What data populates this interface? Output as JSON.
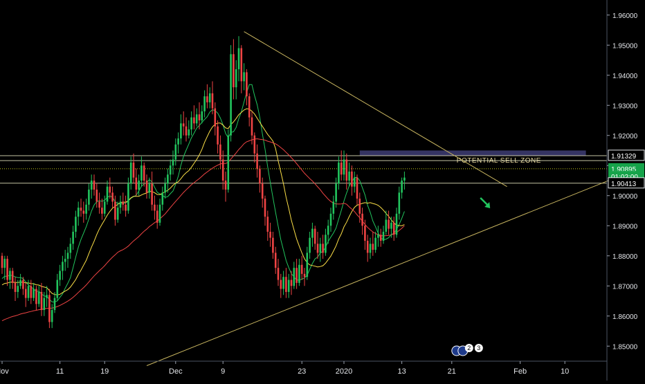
{
  "chart_data": {
    "type": "candlestick",
    "title": "",
    "price_axis": {
      "min": 1.845,
      "max": 1.965,
      "ticks": [
        "1.96000",
        "1.95000",
        "1.94000",
        "1.93000",
        "1.92000",
        "1.91000",
        "1.90000",
        "1.89000",
        "1.88000",
        "1.87000",
        "1.86000",
        "1.85000"
      ],
      "tick_values": [
        1.96,
        1.95,
        1.94,
        1.93,
        1.92,
        1.91,
        1.9,
        1.89,
        1.88,
        1.87,
        1.86,
        1.85
      ]
    },
    "time_axis": {
      "labels": [
        "Nov",
        "11",
        "19",
        "Dec",
        "9",
        "23",
        "2020",
        "13",
        "21",
        "Feb",
        "10"
      ],
      "label_index": [
        0,
        22,
        39,
        66,
        84,
        114,
        130,
        152,
        171,
        197,
        214
      ]
    },
    "price_labels": [
      {
        "text": "1.91329",
        "value": 1.91329,
        "style": "level"
      },
      {
        "text": "1.90895",
        "value": 1.90895,
        "style": "last"
      },
      {
        "text": "01:02:00",
        "value": 1.90635,
        "style": "timer"
      },
      {
        "text": "1.90413",
        "value": 1.90413,
        "style": "level"
      }
    ],
    "horizontal_levels": [
      1.91329,
      1.91165,
      1.90895,
      1.90413
    ],
    "zone": {
      "label": "POTENTIAL SELL ZONE",
      "top": 1.915,
      "bottom": 1.91329,
      "from_index": 136,
      "to_index": 222
    },
    "trendlines": [
      {
        "name": "upper",
        "from": [
          92,
          1.9545
        ],
        "to": [
          192,
          1.903
        ]
      },
      {
        "name": "lower",
        "from": [
          55,
          1.8435
        ],
        "to": [
          232,
          1.9055
        ]
      }
    ],
    "arrow": {
      "direction": "down-right",
      "at_index": 184,
      "price": 1.8965,
      "color": "#22c55e"
    },
    "badges": [
      "2",
      "3"
    ],
    "colors": {
      "up": "#22c55e",
      "down": "#ef4444",
      "sma_short": "#22c55e",
      "sma_mid": "#fde047",
      "sma_long": "#ef4444",
      "trendline": "#c8b560",
      "zone": "#3b3a6e",
      "level": "#e5e5c0"
    },
    "ohlc": [
      [
        1.88,
        1.881,
        1.874,
        1.876
      ],
      [
        1.876,
        1.88,
        1.872,
        1.879
      ],
      [
        1.879,
        1.88,
        1.87,
        1.872
      ],
      [
        1.872,
        1.876,
        1.869,
        1.875
      ],
      [
        1.875,
        1.876,
        1.869,
        1.871
      ],
      [
        1.871,
        1.873,
        1.865,
        1.868
      ],
      [
        1.868,
        1.872,
        1.866,
        1.87
      ],
      [
        1.87,
        1.874,
        1.869,
        1.872
      ],
      [
        1.872,
        1.873,
        1.867,
        1.869
      ],
      [
        1.869,
        1.871,
        1.863,
        1.866
      ],
      [
        1.866,
        1.872,
        1.865,
        1.87
      ],
      [
        1.87,
        1.872,
        1.864,
        1.866
      ],
      [
        1.866,
        1.871,
        1.865,
        1.869
      ],
      [
        1.869,
        1.87,
        1.862,
        1.864
      ],
      [
        1.864,
        1.87,
        1.863,
        1.868
      ],
      [
        1.868,
        1.871,
        1.86,
        1.862
      ],
      [
        1.862,
        1.868,
        1.86,
        1.866
      ],
      [
        1.866,
        1.87,
        1.863,
        1.867
      ],
      [
        1.867,
        1.869,
        1.856,
        1.858
      ],
      [
        1.858,
        1.864,
        1.856,
        1.862
      ],
      [
        1.862,
        1.868,
        1.861,
        1.866
      ],
      [
        1.866,
        1.874,
        1.865,
        1.872
      ],
      [
        1.872,
        1.877,
        1.87,
        1.875
      ],
      [
        1.875,
        1.88,
        1.872,
        1.878
      ],
      [
        1.878,
        1.882,
        1.875,
        1.879
      ],
      [
        1.879,
        1.883,
        1.876,
        1.881
      ],
      [
        1.881,
        1.886,
        1.879,
        1.884
      ],
      [
        1.884,
        1.89,
        1.882,
        1.888
      ],
      [
        1.888,
        1.895,
        1.886,
        1.893
      ],
      [
        1.893,
        1.898,
        1.89,
        1.896
      ],
      [
        1.896,
        1.899,
        1.893,
        1.895
      ],
      [
        1.895,
        1.898,
        1.891,
        1.894
      ],
      [
        1.894,
        1.899,
        1.892,
        1.897
      ],
      [
        1.897,
        1.904,
        1.895,
        1.902
      ],
      [
        1.902,
        1.907,
        1.899,
        1.905
      ],
      [
        1.905,
        1.907,
        1.9,
        1.902
      ],
      [
        1.902,
        1.904,
        1.896,
        1.898
      ],
      [
        1.898,
        1.901,
        1.894,
        1.896
      ],
      [
        1.896,
        1.899,
        1.892,
        1.894
      ],
      [
        1.894,
        1.9,
        1.893,
        1.898
      ],
      [
        1.898,
        1.905,
        1.897,
        1.903
      ],
      [
        1.903,
        1.906,
        1.899,
        1.901
      ],
      [
        1.901,
        1.903,
        1.896,
        1.898
      ],
      [
        1.898,
        1.9,
        1.89,
        1.892
      ],
      [
        1.892,
        1.898,
        1.891,
        1.896
      ],
      [
        1.896,
        1.9,
        1.894,
        1.898
      ],
      [
        1.898,
        1.901,
        1.895,
        1.897
      ],
      [
        1.897,
        1.9,
        1.893,
        1.895
      ],
      [
        1.895,
        1.906,
        1.894,
        1.904
      ],
      [
        1.904,
        1.913,
        1.902,
        1.911
      ],
      [
        1.911,
        1.914,
        1.904,
        1.906
      ],
      [
        1.906,
        1.909,
        1.9,
        1.902
      ],
      [
        1.902,
        1.907,
        1.9,
        1.905
      ],
      [
        1.905,
        1.913,
        1.903,
        1.91
      ],
      [
        1.91,
        1.911,
        1.903,
        1.905
      ],
      [
        1.905,
        1.907,
        1.899,
        1.901
      ],
      [
        1.901,
        1.906,
        1.899,
        1.904
      ],
      [
        1.904,
        1.908,
        1.895,
        1.897
      ],
      [
        1.897,
        1.9,
        1.892,
        1.895
      ],
      [
        1.895,
        1.897,
        1.889,
        1.891
      ],
      [
        1.891,
        1.899,
        1.89,
        1.897
      ],
      [
        1.897,
        1.903,
        1.895,
        1.901
      ],
      [
        1.901,
        1.906,
        1.899,
        1.904
      ],
      [
        1.904,
        1.909,
        1.901,
        1.907
      ],
      [
        1.907,
        1.912,
        1.905,
        1.91
      ],
      [
        1.91,
        1.915,
        1.907,
        1.912
      ],
      [
        1.912,
        1.919,
        1.91,
        1.917
      ],
      [
        1.917,
        1.921,
        1.914,
        1.919
      ],
      [
        1.919,
        1.927,
        1.917,
        1.924
      ],
      [
        1.924,
        1.928,
        1.92,
        1.923
      ],
      [
        1.923,
        1.926,
        1.918,
        1.92
      ],
      [
        1.92,
        1.925,
        1.919,
        1.922
      ],
      [
        1.922,
        1.928,
        1.92,
        1.926
      ],
      [
        1.926,
        1.93,
        1.922,
        1.924
      ],
      [
        1.924,
        1.929,
        1.923,
        1.927
      ],
      [
        1.927,
        1.931,
        1.922,
        1.925
      ],
      [
        1.925,
        1.93,
        1.924,
        1.928
      ],
      [
        1.928,
        1.935,
        1.926,
        1.933
      ],
      [
        1.933,
        1.937,
        1.929,
        1.931
      ],
      [
        1.931,
        1.936,
        1.929,
        1.934
      ],
      [
        1.934,
        1.938,
        1.927,
        1.929
      ],
      [
        1.929,
        1.931,
        1.92,
        1.923
      ],
      [
        1.923,
        1.925,
        1.914,
        1.917
      ],
      [
        1.917,
        1.92,
        1.909,
        1.912
      ],
      [
        1.912,
        1.915,
        1.902,
        1.905
      ],
      [
        1.905,
        1.908,
        1.898,
        1.902
      ],
      [
        1.902,
        1.922,
        1.901,
        1.92
      ],
      [
        1.92,
        1.95,
        1.918,
        1.947
      ],
      [
        1.947,
        1.952,
        1.932,
        1.936
      ],
      [
        1.936,
        1.945,
        1.932,
        1.942
      ],
      [
        1.942,
        1.953,
        1.938,
        1.949
      ],
      [
        1.949,
        1.95,
        1.934,
        1.938
      ],
      [
        1.938,
        1.944,
        1.935,
        1.941
      ],
      [
        1.941,
        1.942,
        1.93,
        1.933
      ],
      [
        1.933,
        1.934,
        1.923,
        1.926
      ],
      [
        1.926,
        1.928,
        1.917,
        1.92
      ],
      [
        1.92,
        1.921,
        1.911,
        1.914
      ],
      [
        1.914,
        1.917,
        1.906,
        1.909
      ],
      [
        1.909,
        1.91,
        1.901,
        1.904
      ],
      [
        1.904,
        1.906,
        1.896,
        1.899
      ],
      [
        1.899,
        1.9,
        1.89,
        1.893
      ],
      [
        1.893,
        1.895,
        1.885,
        1.888
      ],
      [
        1.888,
        1.891,
        1.883,
        1.886
      ],
      [
        1.886,
        1.888,
        1.879,
        1.881
      ],
      [
        1.881,
        1.883,
        1.874,
        1.876
      ],
      [
        1.876,
        1.879,
        1.87,
        1.872
      ],
      [
        1.872,
        1.874,
        1.866,
        1.869
      ],
      [
        1.869,
        1.875,
        1.867,
        1.873
      ],
      [
        1.873,
        1.876,
        1.866,
        1.868
      ],
      [
        1.868,
        1.874,
        1.866,
        1.872
      ],
      [
        1.872,
        1.875,
        1.867,
        1.87
      ],
      [
        1.87,
        1.878,
        1.869,
        1.876
      ],
      [
        1.876,
        1.879,
        1.869,
        1.871
      ],
      [
        1.871,
        1.879,
        1.87,
        1.877
      ],
      [
        1.877,
        1.88,
        1.872,
        1.874
      ],
      [
        1.874,
        1.876,
        1.87,
        1.873
      ],
      [
        1.873,
        1.883,
        1.872,
        1.881
      ],
      [
        1.881,
        1.888,
        1.879,
        1.886
      ],
      [
        1.886,
        1.891,
        1.883,
        1.889
      ],
      [
        1.889,
        1.89,
        1.882,
        1.884
      ],
      [
        1.884,
        1.888,
        1.879,
        1.881
      ],
      [
        1.881,
        1.886,
        1.878,
        1.884
      ],
      [
        1.884,
        1.887,
        1.879,
        1.881
      ],
      [
        1.881,
        1.889,
        1.88,
        1.887
      ],
      [
        1.887,
        1.892,
        1.884,
        1.89
      ],
      [
        1.89,
        1.896,
        1.888,
        1.894
      ],
      [
        1.894,
        1.9,
        1.892,
        1.898
      ],
      [
        1.898,
        1.906,
        1.896,
        1.904
      ],
      [
        1.904,
        1.913,
        1.902,
        1.911
      ],
      [
        1.911,
        1.915,
        1.905,
        1.907
      ],
      [
        1.907,
        1.915,
        1.905,
        1.912
      ],
      [
        1.912,
        1.914,
        1.902,
        1.905
      ],
      [
        1.905,
        1.911,
        1.903,
        1.908
      ],
      [
        1.908,
        1.91,
        1.9,
        1.903
      ],
      [
        1.903,
        1.908,
        1.901,
        1.906
      ],
      [
        1.906,
        1.907,
        1.897,
        1.899
      ],
      [
        1.899,
        1.901,
        1.891,
        1.894
      ],
      [
        1.894,
        1.896,
        1.887,
        1.89
      ],
      [
        1.89,
        1.892,
        1.882,
        1.885
      ],
      [
        1.885,
        1.887,
        1.878,
        1.881
      ],
      [
        1.881,
        1.886,
        1.879,
        1.884
      ],
      [
        1.884,
        1.888,
        1.88,
        1.882
      ],
      [
        1.882,
        1.888,
        1.881,
        1.886
      ],
      [
        1.886,
        1.89,
        1.883,
        1.887
      ],
      [
        1.887,
        1.889,
        1.883,
        1.885
      ],
      [
        1.885,
        1.89,
        1.884,
        1.888
      ],
      [
        1.888,
        1.895,
        1.887,
        1.892
      ],
      [
        1.892,
        1.895,
        1.887,
        1.889
      ],
      [
        1.889,
        1.893,
        1.886,
        1.891
      ],
      [
        1.891,
        1.893,
        1.885,
        1.887
      ],
      [
        1.887,
        1.896,
        1.886,
        1.894
      ],
      [
        1.894,
        1.903,
        1.892,
        1.901
      ],
      [
        1.901,
        1.906,
        1.899,
        1.905
      ],
      [
        1.905,
        1.908,
        1.902,
        1.906
      ]
    ]
  }
}
